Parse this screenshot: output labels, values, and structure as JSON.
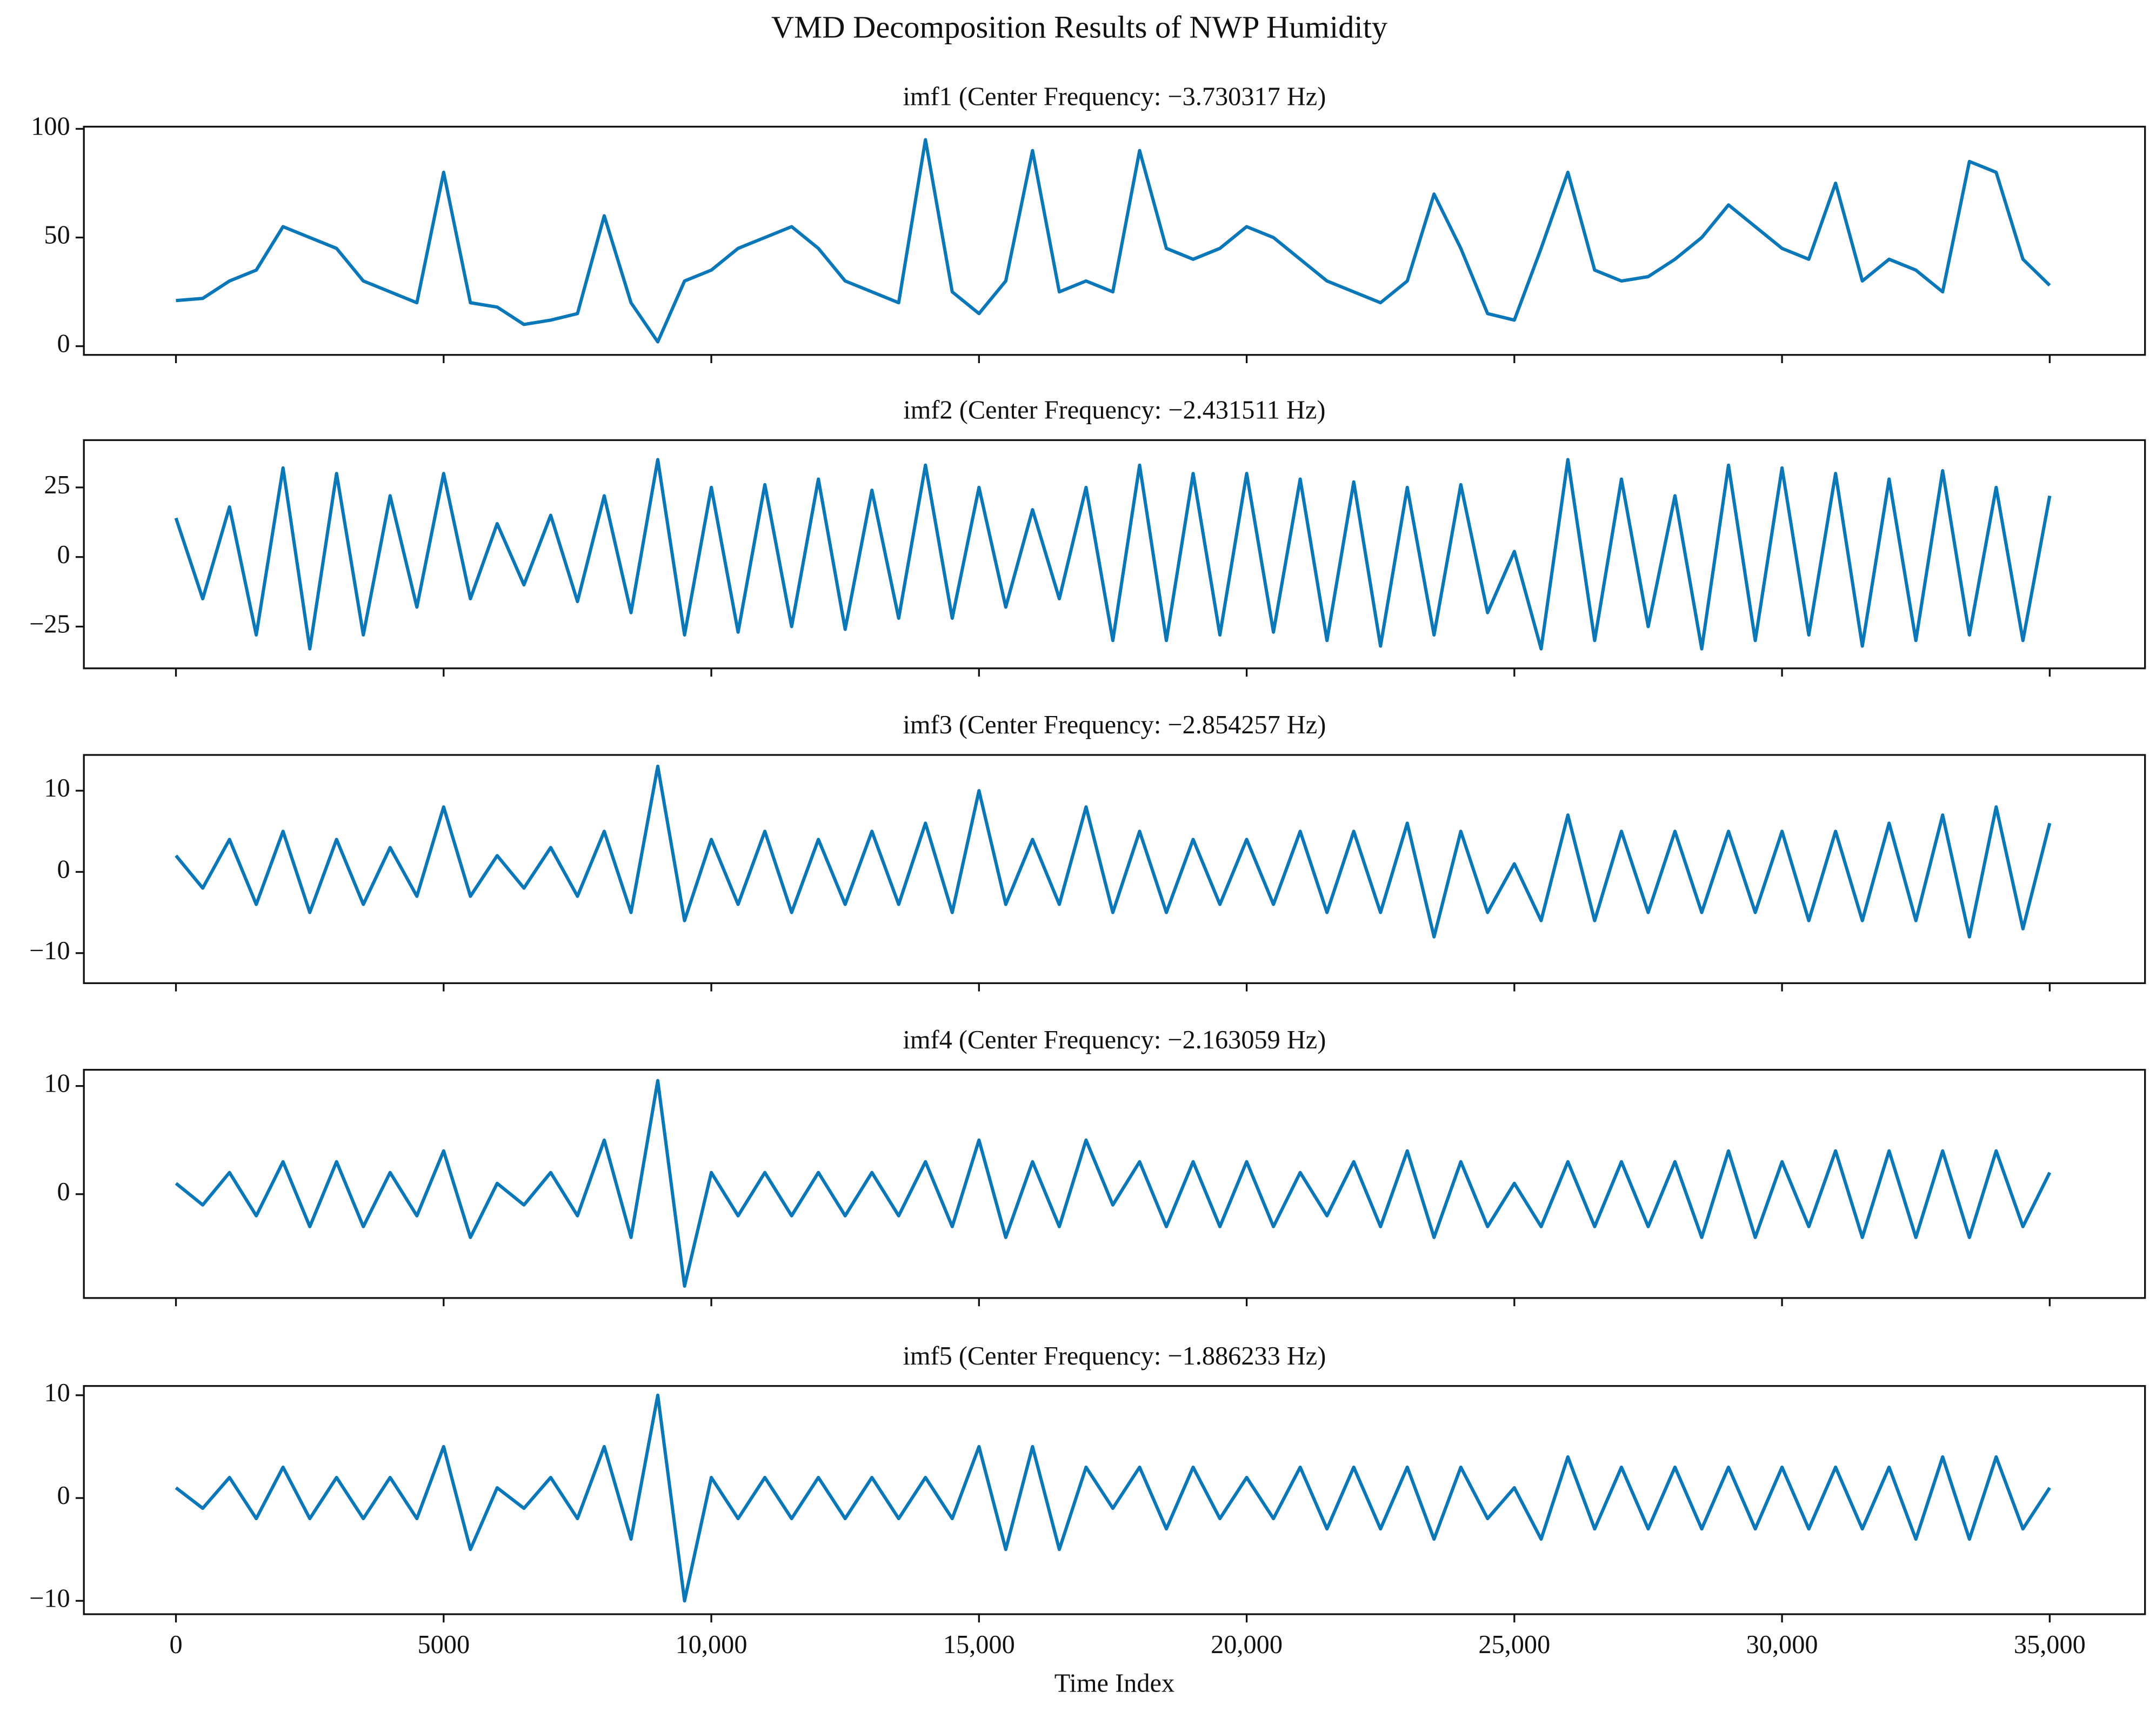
{
  "title": "VMD Decomposition Results of NWP Humidity",
  "chart_data": [
    {
      "type": "line",
      "title": "imf1 (Center Frequency: −3.730317 Hz)",
      "color": "#0a77b8",
      "x": [
        0,
        500,
        1000,
        1500,
        2000,
        2500,
        3000,
        3500,
        4000,
        4500,
        5000,
        5500,
        6000,
        6500,
        7000,
        7500,
        8000,
        8500,
        9000,
        9500,
        10000,
        10500,
        11000,
        11500,
        12000,
        12500,
        13000,
        13500,
        14000,
        14500,
        15000,
        15500,
        16000,
        16500,
        17000,
        17500,
        18000,
        18500,
        19000,
        19500,
        20000,
        20500,
        21000,
        21500,
        22000,
        22500,
        23000,
        23500,
        24000,
        24500,
        25000,
        25500,
        26000,
        26500,
        27000,
        27500,
        28000,
        28500,
        29000,
        29500,
        30000,
        30500,
        31000,
        31500,
        32000,
        32500,
        33000,
        33500,
        34000,
        34500,
        35000
      ],
      "values": [
        21,
        22,
        30,
        35,
        55,
        50,
        45,
        30,
        25,
        20,
        80,
        20,
        18,
        10,
        12,
        15,
        60,
        20,
        2,
        30,
        35,
        45,
        50,
        55,
        45,
        30,
        25,
        20,
        95,
        25,
        15,
        30,
        90,
        25,
        30,
        25,
        90,
        45,
        40,
        45,
        55,
        50,
        40,
        30,
        25,
        20,
        30,
        70,
        45,
        15,
        12,
        45,
        80,
        35,
        30,
        32,
        40,
        50,
        65,
        55,
        45,
        40,
        75,
        30,
        40,
        35,
        25,
        85,
        80,
        40,
        28
      ],
      "xlim": [
        -1720,
        36780
      ],
      "ylim": [
        -4,
        101
      ],
      "yticks": [
        0,
        50,
        100
      ]
    },
    {
      "type": "line",
      "title": "imf2 (Center Frequency: −2.431511 Hz)",
      "color": "#0a77b8",
      "x": [
        0,
        500,
        1000,
        1500,
        2000,
        2500,
        3000,
        3500,
        4000,
        4500,
        5000,
        5500,
        6000,
        6500,
        7000,
        7500,
        8000,
        8500,
        9000,
        9500,
        10000,
        10500,
        11000,
        11500,
        12000,
        12500,
        13000,
        13500,
        14000,
        14500,
        15000,
        15500,
        16000,
        16500,
        17000,
        17500,
        18000,
        18500,
        19000,
        19500,
        20000,
        20500,
        21000,
        21500,
        22000,
        22500,
        23000,
        23500,
        24000,
        24500,
        25000,
        25500,
        26000,
        26500,
        27000,
        27500,
        28000,
        28500,
        29000,
        29500,
        30000,
        30500,
        31000,
        31500,
        32000,
        32500,
        33000,
        33500,
        34000,
        34500,
        35000
      ],
      "values": [
        14,
        -15,
        18,
        -28,
        32,
        -33,
        30,
        -28,
        22,
        -18,
        30,
        -15,
        12,
        -10,
        15,
        -16,
        22,
        -20,
        35,
        -28,
        25,
        -27,
        26,
        -25,
        28,
        -26,
        24,
        -22,
        33,
        -22,
        25,
        -18,
        17,
        -15,
        25,
        -30,
        33,
        -30,
        30,
        -28,
        30,
        -27,
        28,
        -30,
        27,
        -32,
        25,
        -28,
        26,
        -20,
        2,
        -33,
        35,
        -30,
        28,
        -25,
        22,
        -33,
        33,
        -30,
        32,
        -28,
        30,
        -32,
        28,
        -30,
        31,
        -28,
        25,
        -30,
        22
      ],
      "xlim": [
        -1720,
        36780
      ],
      "ylim": [
        -40,
        42
      ],
      "yticks": [
        {
          "value": -25,
          "label": "−25"
        },
        0,
        25
      ]
    },
    {
      "type": "line",
      "title": "imf3 (Center Frequency: −2.854257 Hz)",
      "color": "#0a77b8",
      "x": [
        0,
        500,
        1000,
        1500,
        2000,
        2500,
        3000,
        3500,
        4000,
        4500,
        5000,
        5500,
        6000,
        6500,
        7000,
        7500,
        8000,
        8500,
        9000,
        9500,
        10000,
        10500,
        11000,
        11500,
        12000,
        12500,
        13000,
        13500,
        14000,
        14500,
        15000,
        15500,
        16000,
        16500,
        17000,
        17500,
        18000,
        18500,
        19000,
        19500,
        20000,
        20500,
        21000,
        21500,
        22000,
        22500,
        23000,
        23500,
        24000,
        24500,
        25000,
        25500,
        26000,
        26500,
        27000,
        27500,
        28000,
        28500,
        29000,
        29500,
        30000,
        30500,
        31000,
        31500,
        32000,
        32500,
        33000,
        33500,
        34000,
        34500,
        35000
      ],
      "values": [
        2,
        -2,
        4,
        -4,
        5,
        -5,
        4,
        -4,
        3,
        -3,
        8,
        -3,
        2,
        -2,
        3,
        -3,
        5,
        -5,
        13,
        -6,
        4,
        -4,
        5,
        -5,
        4,
        -4,
        5,
        -4,
        6,
        -5,
        10,
        -4,
        4,
        -4,
        8,
        -5,
        5,
        -5,
        4,
        -4,
        4,
        -4,
        5,
        -5,
        5,
        -5,
        6,
        -8,
        5,
        -5,
        1,
        -6,
        7,
        -6,
        5,
        -5,
        5,
        -5,
        5,
        -5,
        5,
        -6,
        5,
        -6,
        6,
        -6,
        7,
        -8,
        8,
        -7,
        6
      ],
      "xlim": [
        -1720,
        36780
      ],
      "ylim": [
        -13.7,
        14.4
      ],
      "yticks": [
        {
          "value": -10,
          "label": "−10"
        },
        0,
        10
      ]
    },
    {
      "type": "line",
      "title": "imf4 (Center Frequency: −2.163059 Hz)",
      "color": "#0a77b8",
      "x": [
        0,
        500,
        1000,
        1500,
        2000,
        2500,
        3000,
        3500,
        4000,
        4500,
        5000,
        5500,
        6000,
        6500,
        7000,
        7500,
        8000,
        8500,
        9000,
        9500,
        10000,
        10500,
        11000,
        11500,
        12000,
        12500,
        13000,
        13500,
        14000,
        14500,
        15000,
        15500,
        16000,
        16500,
        17000,
        17500,
        18000,
        18500,
        19000,
        19500,
        20000,
        20500,
        21000,
        21500,
        22000,
        22500,
        23000,
        23500,
        24000,
        24500,
        25000,
        25500,
        26000,
        26500,
        27000,
        27500,
        28000,
        28500,
        29000,
        29500,
        30000,
        30500,
        31000,
        31500,
        32000,
        32500,
        33000,
        33500,
        34000,
        34500,
        35000
      ],
      "values": [
        1,
        -1,
        2,
        -2,
        3,
        -3,
        3,
        -3,
        2,
        -2,
        4,
        -4,
        1,
        -1,
        2,
        -2,
        5,
        -4,
        10.5,
        -8.5,
        2,
        -2,
        2,
        -2,
        2,
        -2,
        2,
        -2,
        3,
        -3,
        5,
        -4,
        3,
        -3,
        5,
        -1,
        3,
        -3,
        3,
        -3,
        3,
        -3,
        2,
        -2,
        3,
        -3,
        4,
        -4,
        3,
        -3,
        1,
        -3,
        3,
        -3,
        3,
        -3,
        3,
        -4,
        4,
        -4,
        3,
        -3,
        4,
        -4,
        4,
        -4,
        4,
        -4,
        4,
        -3,
        2
      ],
      "xlim": [
        -1720,
        36780
      ],
      "ylim": [
        -9.6,
        11.5
      ],
      "yticks": [
        0,
        10
      ]
    },
    {
      "type": "line",
      "title": "imf5 (Center Frequency: −1.886233 Hz)",
      "color": "#0a77b8",
      "x": [
        0,
        500,
        1000,
        1500,
        2000,
        2500,
        3000,
        3500,
        4000,
        4500,
        5000,
        5500,
        6000,
        6500,
        7000,
        7500,
        8000,
        8500,
        9000,
        9500,
        10000,
        10500,
        11000,
        11500,
        12000,
        12500,
        13000,
        13500,
        14000,
        14500,
        15000,
        15500,
        16000,
        16500,
        17000,
        17500,
        18000,
        18500,
        19000,
        19500,
        20000,
        20500,
        21000,
        21500,
        22000,
        22500,
        23000,
        23500,
        24000,
        24500,
        25000,
        25500,
        26000,
        26500,
        27000,
        27500,
        28000,
        28500,
        29000,
        29500,
        30000,
        30500,
        31000,
        31500,
        32000,
        32500,
        33000,
        33500,
        34000,
        34500,
        35000
      ],
      "values": [
        1,
        -1,
        2,
        -2,
        3,
        -2,
        2,
        -2,
        2,
        -2,
        5,
        -5,
        1,
        -1,
        2,
        -2,
        5,
        -4,
        10,
        -10,
        2,
        -2,
        2,
        -2,
        2,
        -2,
        2,
        -2,
        2,
        -2,
        5,
        -5,
        5,
        -5,
        3,
        -1,
        3,
        -3,
        3,
        -2,
        2,
        -2,
        3,
        -3,
        3,
        -3,
        3,
        -4,
        3,
        -2,
        1,
        -4,
        4,
        -3,
        3,
        -3,
        3,
        -3,
        3,
        -3,
        3,
        -3,
        3,
        -3,
        3,
        -4,
        4,
        -4,
        4,
        -3,
        1
      ],
      "xlim": [
        -1720,
        36780
      ],
      "ylim": [
        -11.3,
        10.9
      ],
      "yticks": [
        {
          "value": -10,
          "label": "−10"
        },
        0,
        10
      ],
      "xlabel": "Time Index",
      "xticks": [
        0,
        5000,
        {
          "value": 10000,
          "label": "10,000"
        },
        {
          "value": 15000,
          "label": "15,000"
        },
        {
          "value": 20000,
          "label": "20,000"
        },
        {
          "value": 25000,
          "label": "25,000"
        },
        {
          "value": 30000,
          "label": "30,000"
        },
        {
          "value": 35000,
          "label": "35,000"
        }
      ]
    }
  ]
}
